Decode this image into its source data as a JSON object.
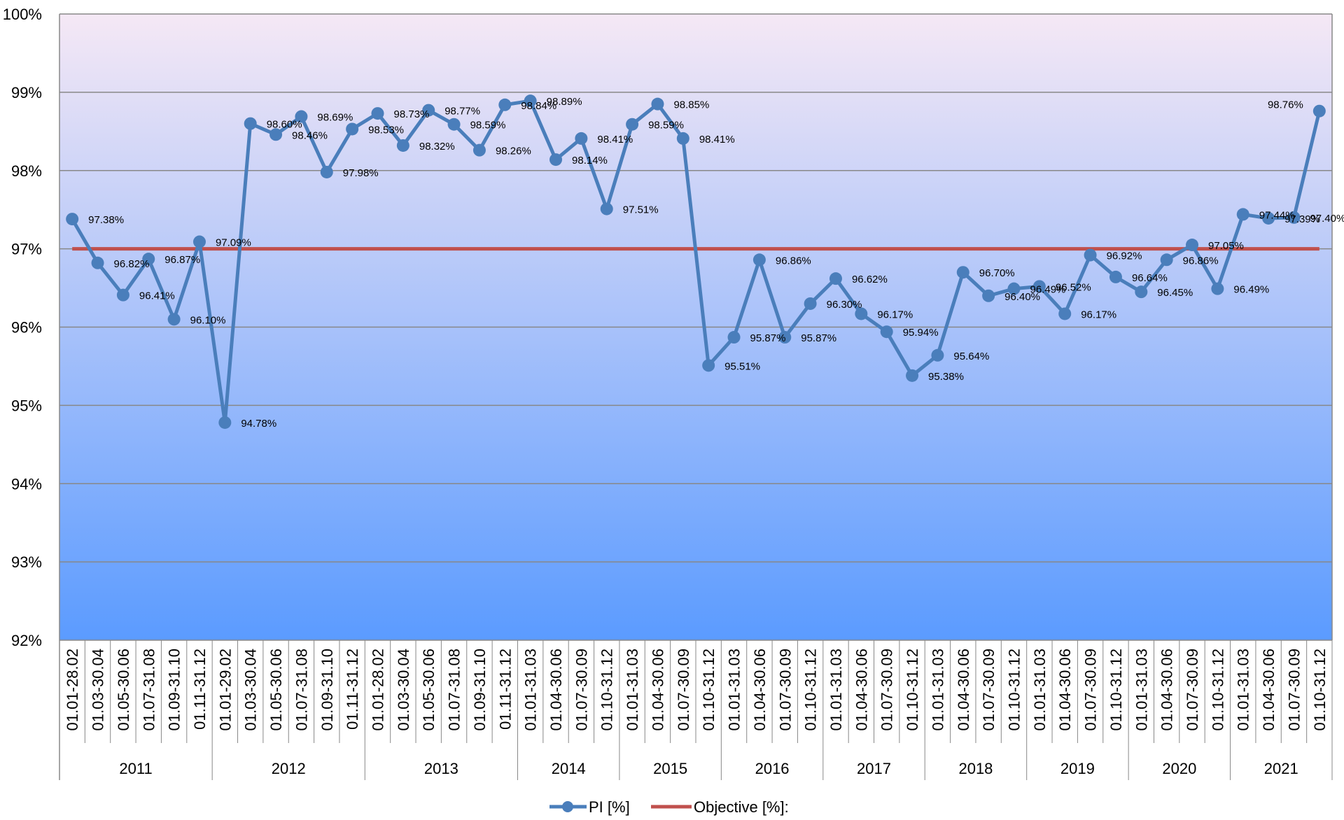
{
  "chart_data": {
    "type": "line",
    "title": "",
    "xlabel": "",
    "ylabel": "",
    "ylim": [
      92,
      100
    ],
    "y_unit": "%",
    "y_ticks": [
      92,
      93,
      94,
      95,
      96,
      97,
      98,
      99,
      100
    ],
    "y_tick_labels": [
      "92%",
      "93%",
      "94%",
      "95%",
      "96%",
      "97%",
      "98%",
      "99%",
      "100%"
    ],
    "grid": "horizontal",
    "legend_position": "bottom",
    "background_gradient": [
      "#f5e8f5",
      "#5b9bff"
    ],
    "groups": [
      {
        "label": "2011",
        "periods": [
          "01.01-28.02",
          "01.03-30.04",
          "01.05-30.06",
          "01.07-31.08",
          "01.09-31.10",
          "01.11-31.12"
        ]
      },
      {
        "label": "2012",
        "periods": [
          "01.01-29.02",
          "01.03-30.04",
          "01.05-30.06",
          "01.07-31.08",
          "01.09-31.10",
          "01.11-31.12"
        ]
      },
      {
        "label": "2013",
        "periods": [
          "01.01-28.02",
          "01.03-30.04",
          "01.05-30.06",
          "01.07-31.08",
          "01.09-31.10",
          "01.11-31.12"
        ]
      },
      {
        "label": "2014",
        "periods": [
          "01.01-31.03",
          "01.04-30.06",
          "01.07-30.09",
          "01.10-31.12"
        ]
      },
      {
        "label": "2015",
        "periods": [
          "01.01-31.03",
          "01.04-30.06",
          "01.07-30.09",
          "01.10-31.12"
        ]
      },
      {
        "label": "2016",
        "periods": [
          "01.01-31.03",
          "01.04-30.06",
          "01.07-30.09",
          "01.10-31.12"
        ]
      },
      {
        "label": "2017",
        "periods": [
          "01.01-31.03",
          "01.04-30.06",
          "01.07-30.09",
          "01.10-31.12"
        ]
      },
      {
        "label": "2018",
        "periods": [
          "01.01-31.03",
          "01.04-30.06",
          "01.07-30.09",
          "01.10-31.12"
        ]
      },
      {
        "label": "2019",
        "periods": [
          "01.01-31.03",
          "01.04-30.06",
          "01.07-30.09",
          "01.10-31.12"
        ]
      },
      {
        "label": "2020",
        "periods": [
          "01.01-31.03",
          "01.04-30.06",
          "01.07-30.09",
          "01.10-31.12"
        ]
      },
      {
        "label": "2021",
        "periods": [
          "01.01-31.03",
          "01.04-30.06",
          "01.07-30.09",
          "01.10-31.12"
        ]
      }
    ],
    "series": [
      {
        "name": "PI [%]",
        "color": "#4a7ebb",
        "values": [
          97.38,
          96.82,
          96.41,
          96.87,
          96.1,
          97.09,
          94.78,
          98.6,
          98.46,
          98.69,
          97.98,
          98.53,
          98.73,
          98.32,
          98.77,
          98.59,
          98.26,
          98.84,
          98.89,
          98.14,
          98.41,
          97.51,
          98.59,
          98.85,
          98.41,
          95.51,
          95.87,
          96.86,
          95.87,
          96.3,
          96.62,
          96.17,
          95.94,
          95.38,
          95.64,
          96.7,
          96.4,
          96.49,
          96.52,
          96.17,
          96.92,
          96.64,
          96.45,
          96.86,
          97.05,
          96.49,
          97.44,
          97.39,
          97.4,
          98.76
        ],
        "labels": [
          "97.38%",
          "96.82%",
          "96.41%",
          "96.87%",
          "96.10%",
          "97.09%",
          "94.78%",
          "98.60%",
          "98.46%",
          "98.69%",
          "97.98%",
          "98.53%",
          "98.73%",
          "98.32%",
          "98.77%",
          "98.59%",
          "98.26%",
          "98.84%",
          "98.89%",
          "98.14%",
          "98.41%",
          "97.51%",
          "98.59%",
          "98.85%",
          "98.41%",
          "95.51%",
          "95.87%",
          "96.86%",
          "95.87%",
          "96.30%",
          "96.62%",
          "96.17%",
          "95.94%",
          "95.38%",
          "95.64%",
          "96.70%",
          "96.40%",
          "96.49%",
          "96.52%",
          "96.17%",
          "96.92%",
          "96.64%",
          "96.45%",
          "96.86%",
          "97.05%",
          "96.49%",
          "97.44%",
          "97.39%",
          "97.40%",
          "98.76%"
        ]
      },
      {
        "name": "Objective [%]:",
        "color": "#c0504d",
        "value": 97.0
      }
    ]
  }
}
